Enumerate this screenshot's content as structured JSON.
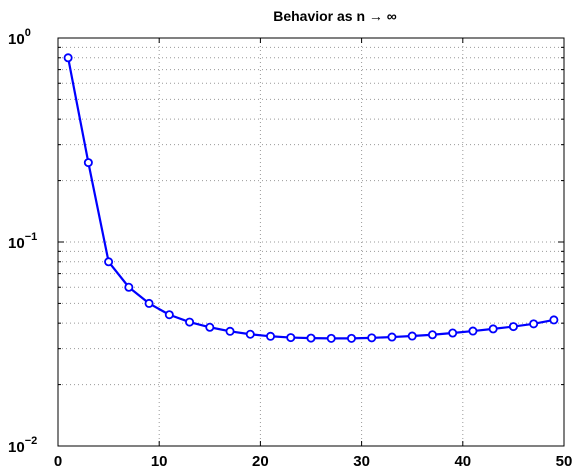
{
  "chart_data": {
    "type": "line",
    "title": "Behavior as n → ∞",
    "xlabel": "",
    "ylabel": "",
    "xlim": [
      0,
      50
    ],
    "ylim": [
      0.01,
      1
    ],
    "yscale": "log",
    "grid": true,
    "x_ticks": [
      0,
      10,
      20,
      30,
      40,
      50
    ],
    "y_ticks": [
      {
        "value": 0.01,
        "base": "10",
        "exp": "−2"
      },
      {
        "value": 0.1,
        "base": "10",
        "exp": "−1"
      },
      {
        "value": 1,
        "base": "10",
        "exp": "0"
      }
    ],
    "series": [
      {
        "color": "#0000ff",
        "marker": "circle",
        "x": [
          1,
          3,
          5,
          7,
          9,
          11,
          13,
          15,
          17,
          19,
          21,
          23,
          25,
          27,
          29,
          31,
          33,
          35,
          37,
          39,
          41,
          43,
          45,
          47,
          49
        ],
        "y": [
          0.8,
          0.245,
          0.08,
          0.06,
          0.05,
          0.044,
          0.0405,
          0.0382,
          0.0365,
          0.0353,
          0.0345,
          0.034,
          0.0338,
          0.0337,
          0.0337,
          0.0339,
          0.0342,
          0.0346,
          0.0351,
          0.0358,
          0.0366,
          0.0375,
          0.0385,
          0.0397,
          0.0415
        ]
      }
    ]
  }
}
